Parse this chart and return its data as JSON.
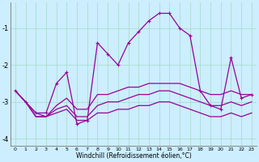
{
  "xlabel": "Windchill (Refroidissement éolien,°C)",
  "bg_color": "#cceeff",
  "grid_color": "#aaddcc",
  "line_color": "#990099",
  "hours": [
    0,
    1,
    2,
    3,
    4,
    5,
    6,
    7,
    8,
    9,
    10,
    11,
    12,
    13,
    14,
    15,
    16,
    17,
    18,
    19,
    20,
    21,
    22,
    23
  ],
  "series1": [
    -2.7,
    -3.0,
    -3.3,
    -3.3,
    -2.5,
    -2.2,
    -3.6,
    -3.5,
    -1.4,
    -1.7,
    -2.0,
    -1.4,
    -1.1,
    -0.8,
    -0.6,
    -0.6,
    -1.0,
    -1.2,
    -2.7,
    -3.1,
    -3.2,
    -1.8,
    -2.9,
    -2.8
  ],
  "series2": [
    -2.7,
    -3.0,
    -3.3,
    -3.4,
    -3.1,
    -2.9,
    -3.2,
    -3.2,
    -2.8,
    -2.8,
    -2.7,
    -2.6,
    -2.6,
    -2.5,
    -2.5,
    -2.5,
    -2.5,
    -2.6,
    -2.7,
    -2.8,
    -2.8,
    -2.7,
    -2.8,
    -2.8
  ],
  "series3": [
    -2.7,
    -3.0,
    -3.4,
    -3.4,
    -3.2,
    -3.1,
    -3.4,
    -3.4,
    -3.1,
    -3.0,
    -3.0,
    -2.9,
    -2.8,
    -2.8,
    -2.7,
    -2.7,
    -2.8,
    -2.9,
    -3.0,
    -3.1,
    -3.1,
    -3.0,
    -3.1,
    -3.0
  ],
  "series4": [
    -2.7,
    -3.0,
    -3.4,
    -3.4,
    -3.3,
    -3.2,
    -3.5,
    -3.5,
    -3.3,
    -3.3,
    -3.2,
    -3.2,
    -3.1,
    -3.1,
    -3.0,
    -3.0,
    -3.1,
    -3.2,
    -3.3,
    -3.4,
    -3.4,
    -3.3,
    -3.4,
    -3.3
  ],
  "ylim": [
    -4.2,
    -0.3
  ],
  "yticks": [
    -4,
    -3,
    -2,
    -1
  ],
  "xlim": [
    -0.5,
    23.5
  ]
}
